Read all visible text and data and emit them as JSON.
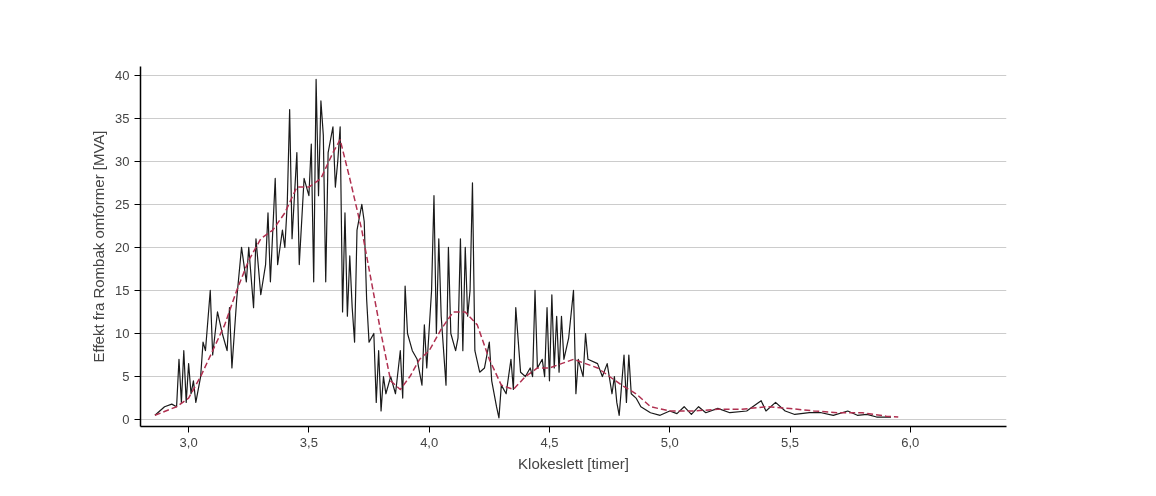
{
  "chart_data": {
    "type": "line",
    "xlabel": "Klokeslett [timer]",
    "ylabel": "Effekt fra Rombak omformer [MVA]",
    "xlim": [
      2.8,
      6.4
    ],
    "ylim": [
      -0.8,
      41
    ],
    "xticks": [
      {
        "value": 3.0,
        "label": "3,0"
      },
      {
        "value": 3.5,
        "label": "3,5"
      },
      {
        "value": 4.0,
        "label": "4,0"
      },
      {
        "value": 4.5,
        "label": "4,5"
      },
      {
        "value": 5.0,
        "label": "5,0"
      },
      {
        "value": 5.5,
        "label": "5,5"
      },
      {
        "value": 6.0,
        "label": "6,0"
      }
    ],
    "yticks": [
      0,
      5,
      10,
      15,
      20,
      25,
      30,
      35,
      40
    ],
    "grid": "y",
    "series": [
      {
        "color": "#1a1a1a",
        "line_style": "solid",
        "x": [
          2.86,
          2.9,
          2.93,
          2.95,
          2.96,
          2.97,
          2.98,
          2.99,
          3.0,
          3.01,
          3.02,
          3.03,
          3.05,
          3.06,
          3.07,
          3.09,
          3.1,
          3.12,
          3.14,
          3.16,
          3.17,
          3.18,
          3.2,
          3.22,
          3.24,
          3.25,
          3.27,
          3.28,
          3.3,
          3.32,
          3.33,
          3.34,
          3.36,
          3.37,
          3.39,
          3.4,
          3.41,
          3.42,
          3.43,
          3.45,
          3.46,
          3.48,
          3.5,
          3.51,
          3.52,
          3.53,
          3.54,
          3.55,
          3.56,
          3.57,
          3.58,
          3.6,
          3.61,
          3.62,
          3.63,
          3.64,
          3.65,
          3.66,
          3.67,
          3.68,
          3.69,
          3.7,
          3.72,
          3.73,
          3.74,
          3.75,
          3.77,
          3.78,
          3.79,
          3.8,
          3.81,
          3.82,
          3.84,
          3.86,
          3.88,
          3.89,
          3.9,
          3.91,
          3.93,
          3.95,
          3.97,
          3.98,
          3.99,
          4.01,
          4.02,
          4.03,
          4.04,
          4.05,
          4.07,
          4.08,
          4.09,
          4.11,
          4.12,
          4.13,
          4.14,
          4.15,
          4.16,
          4.17,
          4.18,
          4.19,
          4.21,
          4.23,
          4.25,
          4.26,
          4.28,
          4.29,
          4.3,
          4.32,
          4.34,
          4.35,
          4.36,
          4.38,
          4.4,
          4.42,
          4.43,
          4.44,
          4.45,
          4.47,
          4.48,
          4.49,
          4.5,
          4.51,
          4.52,
          4.53,
          4.54,
          4.55,
          4.56,
          4.58,
          4.6,
          4.61,
          4.62,
          4.64,
          4.65,
          4.66,
          4.7,
          4.72,
          4.74,
          4.76,
          4.77,
          4.78,
          4.79,
          4.8,
          4.81,
          4.82,
          4.83,
          4.84,
          4.86,
          4.88,
          4.92,
          4.96,
          5.0,
          5.03,
          5.06,
          5.09,
          5.12,
          5.15,
          5.2,
          5.25,
          5.32,
          5.38,
          5.4,
          5.44,
          5.48,
          5.52,
          5.58,
          5.63,
          5.68,
          5.74,
          5.78,
          5.82,
          5.86,
          5.92
        ],
        "values": [
          0.5,
          1.5,
          1.8,
          1.5,
          7,
          2,
          8,
          2,
          6.5,
          3,
          4.5,
          2,
          5,
          9,
          8,
          15,
          7.5,
          12.5,
          10,
          8,
          13,
          6,
          14,
          20,
          16,
          20,
          13,
          21,
          14.5,
          18,
          24,
          16,
          28,
          18,
          22,
          20,
          25,
          36,
          21,
          31,
          18,
          28,
          26,
          32,
          16,
          39.5,
          26,
          37,
          33,
          16,
          31,
          34,
          27,
          30,
          34,
          12.5,
          24,
          12,
          19,
          13,
          9,
          22,
          25,
          23,
          14,
          9,
          10,
          2,
          8,
          1,
          5,
          3,
          5,
          3,
          8,
          2.5,
          15.5,
          10,
          8,
          7,
          4,
          11,
          6,
          15,
          26,
          10,
          21,
          12,
          4,
          20,
          10,
          8,
          9.5,
          21,
          8,
          20,
          12,
          15,
          27.5,
          8,
          5.5,
          6,
          9,
          4.5,
          1.5,
          0.2,
          4,
          3,
          7,
          3.5,
          13,
          5.5,
          5,
          6,
          5,
          15,
          6,
          7,
          5,
          13,
          4.5,
          14.5,
          6,
          12,
          5.5,
          12,
          7,
          9.5,
          15,
          3,
          7,
          5,
          10,
          7,
          6.5,
          5,
          6.5,
          3,
          5,
          2,
          0.5,
          4,
          7.5,
          2,
          7.5,
          3,
          2.5,
          1.5,
          0.8,
          0.5,
          1,
          0.7,
          1.5,
          0.6,
          1.5,
          0.8,
          1.3,
          0.8,
          1,
          2.2,
          1,
          2,
          1,
          0.6,
          0.8,
          0.8,
          0.5,
          1,
          0.5,
          0.6,
          0.3,
          0.3
        ]
      },
      {
        "color": "#b03050",
        "line_style": "dashed",
        "x": [
          2.86,
          2.95,
          3.0,
          3.05,
          3.1,
          3.15,
          3.2,
          3.25,
          3.3,
          3.35,
          3.4,
          3.45,
          3.5,
          3.55,
          3.6,
          3.63,
          3.67,
          3.72,
          3.76,
          3.8,
          3.84,
          3.88,
          3.92,
          3.96,
          4.0,
          4.05,
          4.1,
          4.15,
          4.2,
          4.25,
          4.3,
          4.35,
          4.4,
          4.45,
          4.5,
          4.55,
          4.6,
          4.7,
          4.8,
          4.86,
          4.92,
          5.0,
          5.1,
          5.2,
          5.3,
          5.4,
          5.5,
          5.6,
          5.7,
          5.8,
          5.9,
          5.95
        ],
        "values": [
          0.5,
          1.5,
          2.5,
          5,
          8,
          11,
          15,
          18.5,
          21,
          22,
          24,
          27,
          27,
          28,
          31,
          32.5,
          28,
          22,
          16,
          10,
          4.5,
          3.5,
          5,
          7,
          8,
          10.5,
          12.5,
          12.5,
          11,
          7,
          4,
          3.5,
          5,
          6,
          6,
          6.5,
          7,
          6,
          4,
          3,
          1.5,
          1,
          1,
          1.2,
          1.2,
          1.5,
          1.3,
          1,
          0.8,
          0.8,
          0.4,
          0.3
        ]
      }
    ]
  }
}
